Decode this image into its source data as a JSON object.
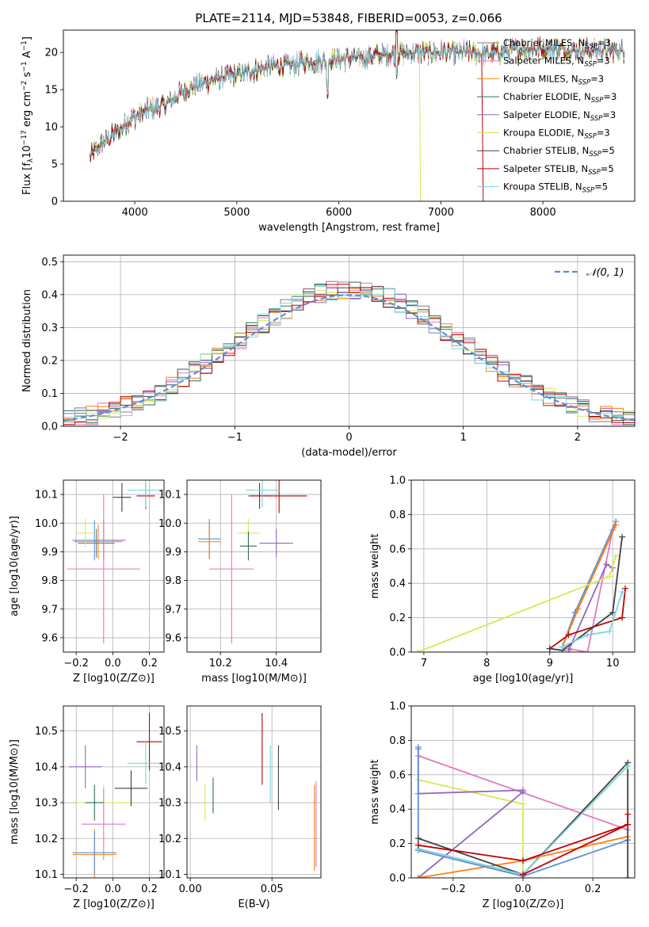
{
  "title": "PLATE=2114, MJD=53848, FIBERID=0053, z=0.066",
  "series_styles": [
    {
      "name": "Chabrier MILES",
      "color": "#7f7f7f"
    },
    {
      "name": "Salpeter MILES",
      "color": "#e377c2"
    },
    {
      "name": "Kroupa MILES",
      "color": "#ff7f0e"
    },
    {
      "name": "Chabrier ELODIE",
      "color": "#2f6f4f"
    },
    {
      "name": "Salpeter ELODIE",
      "color": "#9467bd"
    },
    {
      "name": "Kroupa ELODIE",
      "color": "#d4ea52"
    },
    {
      "name": "Chabrier STELIB",
      "color": "#404040"
    },
    {
      "name": "Salpeter STELIB",
      "color": "#c00000"
    },
    {
      "name": "Kroupa STELIB",
      "color": "#7fd3e0"
    }
  ],
  "chart_data": [
    {
      "id": "spectrum",
      "type": "line",
      "xlabel": "wavelength [Angstrom, rest frame]",
      "ylabel": "Flux [f_λ 10^-17 erg cm^-2 s^-1 A^-1]",
      "xlim": [
        3300,
        8900
      ],
      "ylim": [
        0,
        23
      ],
      "xticks": [
        4000,
        5000,
        6000,
        7000,
        8000
      ],
      "yticks": [
        0,
        5,
        10,
        15,
        20
      ],
      "grid": false,
      "legend_position": "top-right",
      "legend": [
        {
          "label": "Chabrier MILES, N",
          "sub": "SSP",
          "suffix": "=3",
          "color": "#7f7f7f"
        },
        {
          "label": "Salpeter MILES, N",
          "sub": "SSP",
          "suffix": "=3",
          "color": "#e377c2"
        },
        {
          "label": "Kroupa MILES, N",
          "sub": "SSP",
          "suffix": "=3",
          "color": "#ff7f0e"
        },
        {
          "label": "Chabrier ELODIE, N",
          "sub": "SSP",
          "suffix": "=3",
          "color": "#2f6f4f"
        },
        {
          "label": "Salpeter ELODIE, N",
          "sub": "SSP",
          "suffix": "=3",
          "color": "#9467bd"
        },
        {
          "label": "Kroupa ELODIE, N",
          "sub": "SSP",
          "suffix": "=3",
          "color": "#d4ea52"
        },
        {
          "label": "Chabrier STELIB, N",
          "sub": "SSP",
          "suffix": "=5",
          "color": "#404040"
        },
        {
          "label": "Salpeter STELIB, N",
          "sub": "SSP",
          "suffix": "=5",
          "color": "#c00000"
        },
        {
          "label": "Kroupa STELIB, N",
          "sub": "SSP",
          "suffix": "=5",
          "color": "#7fd3e0"
        }
      ],
      "continuum": [
        [
          3560,
          6
        ],
        [
          3700,
          8
        ],
        [
          3850,
          9.5
        ],
        [
          3950,
          11
        ],
        [
          4100,
          12
        ],
        [
          4300,
          13
        ],
        [
          4500,
          15
        ],
        [
          4800,
          16.5
        ],
        [
          5000,
          17
        ],
        [
          5300,
          18
        ],
        [
          5600,
          18.5
        ],
        [
          5900,
          19
        ],
        [
          6200,
          19.3
        ],
        [
          6500,
          19.8
        ],
        [
          6800,
          20
        ],
        [
          7200,
          20
        ],
        [
          7500,
          19.8
        ],
        [
          7800,
          20.5
        ],
        [
          8100,
          20.5
        ],
        [
          8400,
          20.3
        ],
        [
          8800,
          20.2
        ]
      ]
    },
    {
      "id": "residuals",
      "type": "line",
      "xlabel": "(data-model)/error",
      "ylabel": "Normed distribution",
      "xlim": [
        -2.5,
        2.5
      ],
      "ylim": [
        0,
        0.52
      ],
      "xticks": [
        -2,
        -1,
        0,
        1,
        2
      ],
      "yticks": [
        0.0,
        0.1,
        0.2,
        0.3,
        0.4,
        0.5
      ],
      "grid": true,
      "legend_position": "top-right",
      "legend_label": "𝒩(0, 1)",
      "normal": {
        "mu": 0,
        "sigma": 1,
        "color": "#5b8fd8"
      }
    },
    {
      "id": "age_vs_Z",
      "type": "scatter",
      "xlabel": "Z [log10(Z/Z⊙)]",
      "ylabel": "age [log10(age/yr)]",
      "xlim": [
        -0.27,
        0.28
      ],
      "ylim": [
        9.55,
        10.15
      ],
      "xticks": [
        -0.2,
        0.0,
        0.2
      ],
      "yticks": [
        9.6,
        9.7,
        9.8,
        9.9,
        10.0,
        10.1
      ],
      "grid": true,
      "points": [
        {
          "x": -0.05,
          "y": 9.94,
          "xerr": 0.12,
          "yerr": 0.07,
          "color": "#9467bd"
        },
        {
          "x": -0.08,
          "y": 9.935,
          "xerr": 0.13,
          "yerr": 0.06,
          "color": "#ff7f0e"
        },
        {
          "x": -0.09,
          "y": 9.93,
          "xerr": 0.1,
          "yerr": 0.05,
          "color": "#7f7f7f"
        },
        {
          "x": -0.1,
          "y": 9.94,
          "xerr": 0.12,
          "yerr": 0.07,
          "color": "#5b8fd8"
        },
        {
          "x": -0.15,
          "y": 9.965,
          "xerr": 0.05,
          "yerr": 0.05,
          "color": "#d4ea52"
        },
        {
          "x": -0.05,
          "y": 9.84,
          "xerr": 0.2,
          "yerr": 0.26,
          "color": "#e377c2"
        },
        {
          "x": 0.05,
          "y": 10.09,
          "xerr": 0.05,
          "yerr": 0.05,
          "color": "#404040"
        },
        {
          "x": 0.18,
          "y": 10.095,
          "xerr": 0.05,
          "yerr": 0.045,
          "color": "#c00000"
        },
        {
          "x": 0.18,
          "y": 10.115,
          "xerr": 0.1,
          "yerr": 0.06,
          "color": "#7fd3e0"
        }
      ]
    },
    {
      "id": "age_vs_mass",
      "type": "scatter",
      "xlabel": "mass [log10(M/M⊙)]",
      "ylabel": "",
      "xlim": [
        10.08,
        10.56
      ],
      "ylim": [
        9.55,
        10.15
      ],
      "xticks": [
        10.2,
        10.4
      ],
      "yticks": [
        9.6,
        9.7,
        9.8,
        9.9,
        10.0,
        10.1
      ],
      "grid": true,
      "points": [
        {
          "x": 10.16,
          "y": 9.945,
          "xerr": 0.04,
          "yerr": 0.07,
          "color": "#5b8fd8"
        },
        {
          "x": 10.16,
          "y": 9.935,
          "xerr": 0.04,
          "yerr": 0.06,
          "color": "#ff7f0e"
        },
        {
          "x": 10.3,
          "y": 9.965,
          "xerr": 0.04,
          "yerr": 0.05,
          "color": "#d4ea52"
        },
        {
          "x": 10.3,
          "y": 9.92,
          "xerr": 0.03,
          "yerr": 0.05,
          "color": "#2f6f4f"
        },
        {
          "x": 10.4,
          "y": 9.93,
          "xerr": 0.06,
          "yerr": 0.05,
          "color": "#9467bd"
        },
        {
          "x": 10.24,
          "y": 9.84,
          "xerr": 0.08,
          "yerr": 0.26,
          "color": "#e377c2"
        },
        {
          "x": 10.34,
          "y": 10.095,
          "xerr": 0.04,
          "yerr": 0.045,
          "color": "#404040"
        },
        {
          "x": 10.41,
          "y": 10.095,
          "xerr": 0.1,
          "yerr": 0.06,
          "color": "#c00000"
        },
        {
          "x": 10.35,
          "y": 10.115,
          "xerr": 0.06,
          "yerr": 0.06,
          "color": "#7fd3e0"
        }
      ]
    },
    {
      "id": "weight_vs_age",
      "type": "line",
      "xlabel": "age [log10(age/yr)]",
      "ylabel": "mass weight",
      "xlim": [
        6.8,
        10.35
      ],
      "ylim": [
        0,
        1.0
      ],
      "xticks": [
        7,
        8,
        9,
        10
      ],
      "yticks": [
        0.0,
        0.2,
        0.4,
        0.6,
        0.8,
        1.0
      ],
      "grid": true,
      "series": [
        {
          "color": "#e377c2",
          "x": [
            9.3,
            9.6,
            10.0
          ],
          "y": [
            0.02,
            0.0,
            0.71
          ]
        },
        {
          "color": "#5b8fd8",
          "x": [
            9.2,
            9.4,
            10.05
          ],
          "y": [
            0.03,
            0.23,
            0.76
          ]
        },
        {
          "color": "#ff7f0e",
          "x": [
            9.2,
            9.45,
            10.05
          ],
          "y": [
            0.03,
            0.25,
            0.74
          ]
        },
        {
          "color": "#9467bd",
          "x": [
            9.3,
            9.9,
            10.0
          ],
          "y": [
            0.01,
            0.51,
            0.49
          ]
        },
        {
          "color": "#d4ea52",
          "x": [
            6.9,
            9.95,
            10.05
          ],
          "y": [
            0.0,
            0.44,
            0.56
          ]
        },
        {
          "color": "#c00000",
          "x": [
            9.0,
            9.3,
            10.15,
            10.2
          ],
          "y": [
            0.02,
            0.1,
            0.2,
            0.37
          ]
        },
        {
          "color": "#404040",
          "x": [
            9.0,
            9.2,
            10.0,
            10.15
          ],
          "y": [
            0.02,
            0.01,
            0.23,
            0.67
          ]
        },
        {
          "color": "#7fd3e0",
          "x": [
            9.2,
            9.6,
            9.95,
            10.15
          ],
          "y": [
            0.03,
            0.1,
            0.12,
            0.35
          ]
        }
      ]
    },
    {
      "id": "mass_vs_Z",
      "type": "scatter",
      "xlabel": "Z [log10(Z/Z⊙)]",
      "ylabel": "mass [log10(M/M⊙)]",
      "xlim": [
        -0.27,
        0.28
      ],
      "ylim": [
        10.09,
        10.57
      ],
      "xticks": [
        -0.2,
        0.0,
        0.2
      ],
      "yticks": [
        10.1,
        10.2,
        10.3,
        10.4,
        10.5
      ],
      "grid": true,
      "points": [
        {
          "x": -0.15,
          "y": 10.4,
          "xerr": 0.09,
          "yerr": 0.06,
          "color": "#9467bd"
        },
        {
          "x": -0.05,
          "y": 10.3,
          "xerr": 0.15,
          "yerr": 0.05,
          "color": "#d4ea52"
        },
        {
          "x": -0.1,
          "y": 10.3,
          "xerr": 0.05,
          "yerr": 0.05,
          "color": "#2f6f4f"
        },
        {
          "x": -0.05,
          "y": 10.24,
          "xerr": 0.12,
          "yerr": 0.1,
          "color": "#e377c2"
        },
        {
          "x": -0.1,
          "y": 10.155,
          "xerr": 0.12,
          "yerr": 0.07,
          "color": "#ff7f0e"
        },
        {
          "x": -0.1,
          "y": 10.16,
          "xerr": 0.12,
          "yerr": 0.06,
          "color": "#5b8fd8"
        },
        {
          "x": 0.1,
          "y": 10.34,
          "xerr": 0.09,
          "yerr": 0.05,
          "color": "#404040"
        },
        {
          "x": 0.2,
          "y": 10.47,
          "xerr": 0.07,
          "yerr": 0.08,
          "color": "#c00000"
        },
        {
          "x": 0.18,
          "y": 10.41,
          "xerr": 0.1,
          "yerr": 0.06,
          "color": "#7fd3e0"
        }
      ]
    },
    {
      "id": "mass_vs_ebv",
      "type": "scatter",
      "xlabel": "E(B-V)",
      "ylabel": "",
      "xlim": [
        -0.002,
        0.08
      ],
      "ylim": [
        10.09,
        10.57
      ],
      "xticks": [
        0.0,
        0.05
      ],
      "yticks": [
        10.1,
        10.2,
        10.3,
        10.4,
        10.5
      ],
      "grid": true,
      "points": [
        {
          "x": 0.004,
          "y": 10.41,
          "yerr": 0.05,
          "color": "#9467bd"
        },
        {
          "x": 0.009,
          "y": 10.3,
          "yerr": 0.05,
          "color": "#d4ea52"
        },
        {
          "x": 0.014,
          "y": 10.32,
          "yerr": 0.05,
          "color": "#2f6f4f"
        },
        {
          "x": 0.044,
          "y": 10.45,
          "yerr": 0.1,
          "color": "#c00000"
        },
        {
          "x": 0.049,
          "y": 10.38,
          "yerr": 0.08,
          "color": "#7fd3e0"
        },
        {
          "x": 0.054,
          "y": 10.37,
          "yerr": 0.09,
          "color": "#404040"
        },
        {
          "x": 0.076,
          "y": 10.23,
          "yerr": 0.12,
          "color": "#ff7f0e"
        },
        {
          "x": 0.077,
          "y": 10.24,
          "yerr": 0.12,
          "color": "#e377c2"
        }
      ]
    },
    {
      "id": "weight_vs_Z",
      "type": "line",
      "xlabel": "Z [log10(Z/Z⊙)]",
      "ylabel": "mass weight",
      "xlim": [
        -0.32,
        0.32
      ],
      "ylim": [
        0,
        1.0
      ],
      "xticks": [
        -0.2,
        0.0,
        0.2
      ],
      "yticks": [
        0.0,
        0.2,
        0.4,
        0.6,
        0.8,
        1.0
      ],
      "grid": true,
      "series": [
        {
          "color": "#e377c2",
          "x": [
            -0.3,
            0.3
          ],
          "y": [
            0.71,
            0.28
          ]
        },
        {
          "color": "#d4ea52",
          "x": [
            -0.3,
            0.0,
            0.0
          ],
          "y": [
            0.57,
            0.43,
            0.0
          ]
        },
        {
          "color": "#9467bd",
          "x": [
            -0.3,
            -0.3,
            0.0,
            0.0,
            -0.3
          ],
          "y": [
            0.76,
            0.49,
            0.51,
            0.5,
            0.0
          ]
        },
        {
          "color": "#ff7f0e",
          "x": [
            -0.3,
            0.0,
            0.3
          ],
          "y": [
            0.0,
            0.1,
            0.24
          ]
        },
        {
          "color": "#5b8fd8",
          "x": [
            -0.3,
            -0.3,
            0.0,
            0.3
          ],
          "y": [
            0.75,
            0.16,
            0.01,
            0.22
          ]
        },
        {
          "color": "#404040",
          "x": [
            -0.3,
            0.0,
            0.3,
            0.3
          ],
          "y": [
            0.23,
            0.02,
            0.67,
            0.0
          ]
        },
        {
          "color": "#7fd3e0",
          "x": [
            -0.3,
            0.0,
            0.3
          ],
          "y": [
            0.17,
            0.02,
            0.65
          ]
        },
        {
          "color": "#c00000",
          "x": [
            -0.3,
            0.0,
            0.3,
            0.3
          ],
          "y": [
            0.19,
            0.1,
            0.31,
            0.37
          ]
        },
        {
          "color": "#c00000",
          "x": [
            0.0,
            0.3
          ],
          "y": [
            0.02,
            0.31
          ]
        }
      ]
    }
  ]
}
